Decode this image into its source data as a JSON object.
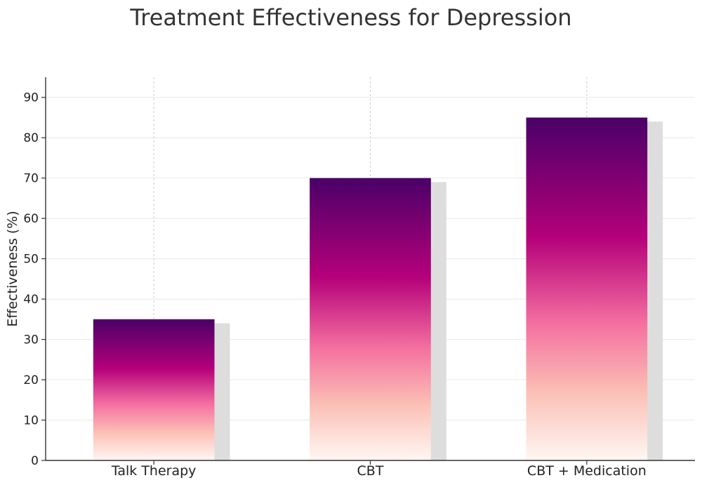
{
  "chart_data": {
    "type": "bar",
    "title": "Treatment Effectiveness for Depression",
    "xlabel": "",
    "ylabel": "Effectiveness (%)",
    "categories": [
      "Talk Therapy",
      "CBT",
      "CBT + Medication"
    ],
    "values": [
      35,
      70,
      85
    ],
    "shadow_values": [
      34,
      69,
      84
    ],
    "ylim": [
      0,
      95
    ],
    "yticks": [
      0,
      10,
      20,
      30,
      40,
      50,
      60,
      70,
      80,
      90
    ],
    "grid": true,
    "legend": "none",
    "colors": {
      "gradient_top": "#4a0068",
      "gradient_mid": "#b5007a",
      "gradient_low": "#f46fa0",
      "gradient_pale": "#fbbfb5",
      "gradient_bottom": "#fff7f3",
      "shadow": "#dddddd",
      "grid": "#e8e8e8",
      "axis": "#333333"
    }
  }
}
